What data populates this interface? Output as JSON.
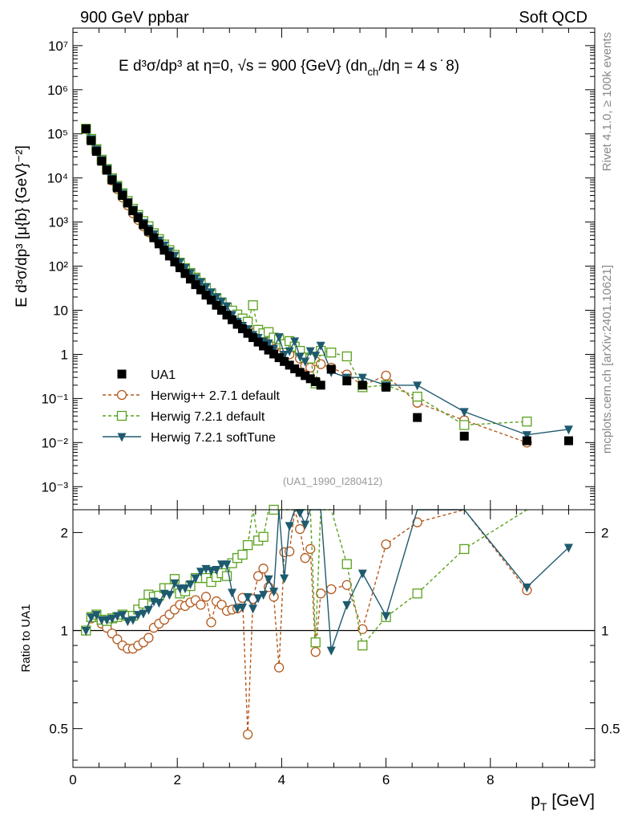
{
  "header": {
    "left": "900 GeV ppbar",
    "right": "Soft QCD"
  },
  "side": {
    "top": "Rivet 4.1.0, ≥ 100k events",
    "bottom": "mcplots.cern.ch [arXiv:2401.10621]"
  },
  "title": {
    "main": "E   d³σ/dp³ at η=0, √s = 900 {GeV} (dn",
    "sub": "ch",
    "tail": "/dη = 4 s ̇ 8)"
  },
  "watermark": "(UA1_1990_I280412)",
  "ylabel_top": "E d³σ/dp³ [μ{b} {GeV}⁻²]",
  "ylabel_bottom": "Ratio to UA1",
  "xlabel": "p",
  "xlabel_sub": "T",
  "xlabel_unit": " [GeV]",
  "ytick_top": [
    "10⁻³",
    "10⁻²",
    "10⁻¹",
    "1",
    "10",
    "10²",
    "10³",
    "10⁴",
    "10⁵",
    "10⁶",
    "10⁷"
  ],
  "ytick_bottom": [
    "0.5",
    "1",
    "2"
  ],
  "xtick": [
    "0",
    "2",
    "4",
    "6",
    "8"
  ],
  "colors": {
    "ua1": "#000000",
    "herwigpp": "#b35a1f",
    "herwig72": "#5aa21e",
    "softtune": "#1e5a6e"
  },
  "chart_data": {
    "type": "scatter",
    "xlim": [
      0,
      10
    ],
    "ylim_main": [
      0.0003,
      25000000
    ],
    "ylim_ratio": [
      0.38,
      2.35
    ],
    "xlabel": "p_T [GeV]",
    "ylabel": "E d³σ/dp³ [μ{b} {GeV}⁻²]",
    "ylabel_ratio": "Ratio to UA1",
    "legend_position": "center-left",
    "x": [
      0.25,
      0.35,
      0.45,
      0.55,
      0.65,
      0.75,
      0.85,
      0.95,
      1.05,
      1.15,
      1.25,
      1.35,
      1.45,
      1.55,
      1.65,
      1.75,
      1.85,
      1.95,
      2.05,
      2.15,
      2.25,
      2.35,
      2.45,
      2.55,
      2.65,
      2.75,
      2.85,
      2.95,
      3.05,
      3.15,
      3.25,
      3.35,
      3.45,
      3.55,
      3.65,
      3.75,
      3.85,
      3.95,
      4.05,
      4.15,
      4.25,
      4.35,
      4.45,
      4.55,
      4.65,
      4.75,
      4.95,
      5.25,
      5.55,
      6.0,
      6.6,
      7.5,
      8.7,
      9.5
    ],
    "series": [
      {
        "name": "UA1",
        "marker": "filled-square",
        "values": [
          130000,
          70000,
          40000,
          24000,
          15000,
          9000,
          6000,
          4000,
          2700,
          1800,
          1250,
          870,
          620,
          440,
          320,
          230,
          170,
          125,
          92,
          68,
          51,
          38,
          29,
          22,
          17,
          13,
          10,
          7.8,
          6.1,
          4.8,
          3.8,
          3.0,
          2.4,
          1.9,
          1.55,
          1.25,
          1.02,
          0.84,
          0.69,
          0.57,
          0.47,
          0.39,
          0.33,
          0.28,
          0.24,
          0.2,
          0.46,
          0.25,
          0.2,
          0.18,
          0.037,
          0.014,
          0.011,
          0.011
        ]
      },
      {
        "name": "Herwig++ 2.7.1 default",
        "marker": "open-circle",
        "values": [
          130000,
          76000,
          44000,
          25000,
          15500,
          8800,
          5600,
          3600,
          2400,
          1580,
          1120,
          800,
          590,
          450,
          340,
          250,
          190,
          145,
          110,
          81,
          62,
          47,
          35,
          28,
          18,
          16,
          12,
          9,
          7.1,
          5.6,
          4.8,
          4,
          3,
          2.8,
          2.4,
          1.7,
          1.3,
          1.7,
          1.2,
          1,
          1.4,
          0.8,
          0.55,
          0.5,
          0.7,
          0.6,
          0.5,
          0.35,
          0.2,
          0.33,
          0.08,
          0.032,
          0.01,
          0
        ]
      },
      {
        "name": "Herwig 7.2.1 default",
        "marker": "open-square",
        "values": [
          130000,
          77000,
          45000,
          26000,
          16000,
          9800,
          6600,
          4500,
          3000,
          2000,
          1450,
          1050,
          800,
          560,
          410,
          310,
          230,
          180,
          120,
          90,
          70,
          55,
          42,
          32,
          24,
          19,
          15,
          11.5,
          9.8,
          8,
          6.5,
          5.5,
          13,
          3.6,
          3,
          3.2,
          2.4,
          2.2,
          1.7,
          2,
          1.5,
          1.2,
          0.85,
          0.8,
          0.22,
          1.2,
          1.1,
          0.9,
          0.18,
          0.2,
          0.11,
          0.025,
          0.03,
          0
        ]
      },
      {
        "name": "Herwig 7.2.1 softTune",
        "marker": "filled-triangle-down",
        "values": [
          130000,
          77000,
          45000,
          26000,
          16200,
          9800,
          6700,
          4500,
          2900,
          1950,
          1400,
          980,
          720,
          540,
          390,
          300,
          220,
          175,
          124,
          92,
          71,
          55,
          44,
          34,
          26,
          20,
          16,
          12.5,
          8,
          5.6,
          4.5,
          3.8,
          2.8,
          2.4,
          2,
          1.8,
          1.35,
          2.5,
          1,
          1.2,
          2,
          0.9,
          0.7,
          1.2,
          0.95,
          1.6,
          0.4,
          0.3,
          0.3,
          0.2,
          0.2,
          0.05,
          0.015,
          0.02
        ]
      }
    ],
    "ratio_series": [
      {
        "name": "Herwig++ 2.7.1 default",
        "values": [
          1.0,
          1.09,
          1.1,
          1.05,
          1.02,
          0.98,
          0.94,
          0.9,
          0.88,
          0.88,
          0.9,
          0.92,
          0.95,
          1.02,
          1.05,
          1.08,
          1.12,
          1.16,
          1.2,
          1.19,
          1.22,
          1.24,
          1.2,
          1.27,
          1.06,
          1.23,
          1.2,
          1.15,
          1.16,
          1.17,
          1.26,
          0.48,
          1.25,
          1.47,
          1.55,
          1.36,
          1.27,
          0.77,
          1.74,
          1.75,
          2.9,
          2.05,
          1.67,
          1.78,
          0.86,
          1.3,
          1.34,
          1.38,
          1.01,
          1.84,
          2.15,
          2.6,
          1.33,
          0
        ]
      },
      {
        "name": "Herwig 7.2.1 default",
        "values": [
          1.0,
          1.1,
          1.12,
          1.08,
          1.07,
          1.09,
          1.1,
          1.12,
          1.11,
          1.11,
          1.16,
          1.21,
          1.29,
          1.27,
          1.28,
          1.35,
          1.35,
          1.44,
          1.3,
          1.32,
          1.37,
          1.45,
          1.45,
          1.45,
          1.41,
          1.46,
          1.5,
          1.47,
          1.61,
          1.67,
          1.71,
          1.83,
          2.46,
          1.89,
          1.94,
          2.56,
          2.35,
          2.62,
          2.46,
          3.5,
          3.2,
          3.1,
          2.6,
          2.86,
          0.92,
          6,
          2.4,
          1.6,
          0.9,
          1.1,
          1.3,
          1.78,
          2.7,
          0
        ]
      },
      {
        "name": "Herwig 7.2.1 softTune",
        "values": [
          1.0,
          1.1,
          1.12,
          1.08,
          1.08,
          1.09,
          1.11,
          1.12,
          1.07,
          1.08,
          1.12,
          1.13,
          1.16,
          1.23,
          1.22,
          1.3,
          1.29,
          1.4,
          1.35,
          1.35,
          1.39,
          1.45,
          1.52,
          1.55,
          1.53,
          1.54,
          1.6,
          1.6,
          1.31,
          1.17,
          1.18,
          1.27,
          1.17,
          1.26,
          1.29,
          1.44,
          1.32,
          2.98,
          1.45,
          2.1,
          4.25,
          2.3,
          2.12,
          4.3,
          3.95,
          8,
          0.87,
          1.2,
          1.5,
          1.11,
          5.4,
          3.57,
          1.36,
          1.8
        ]
      }
    ]
  }
}
